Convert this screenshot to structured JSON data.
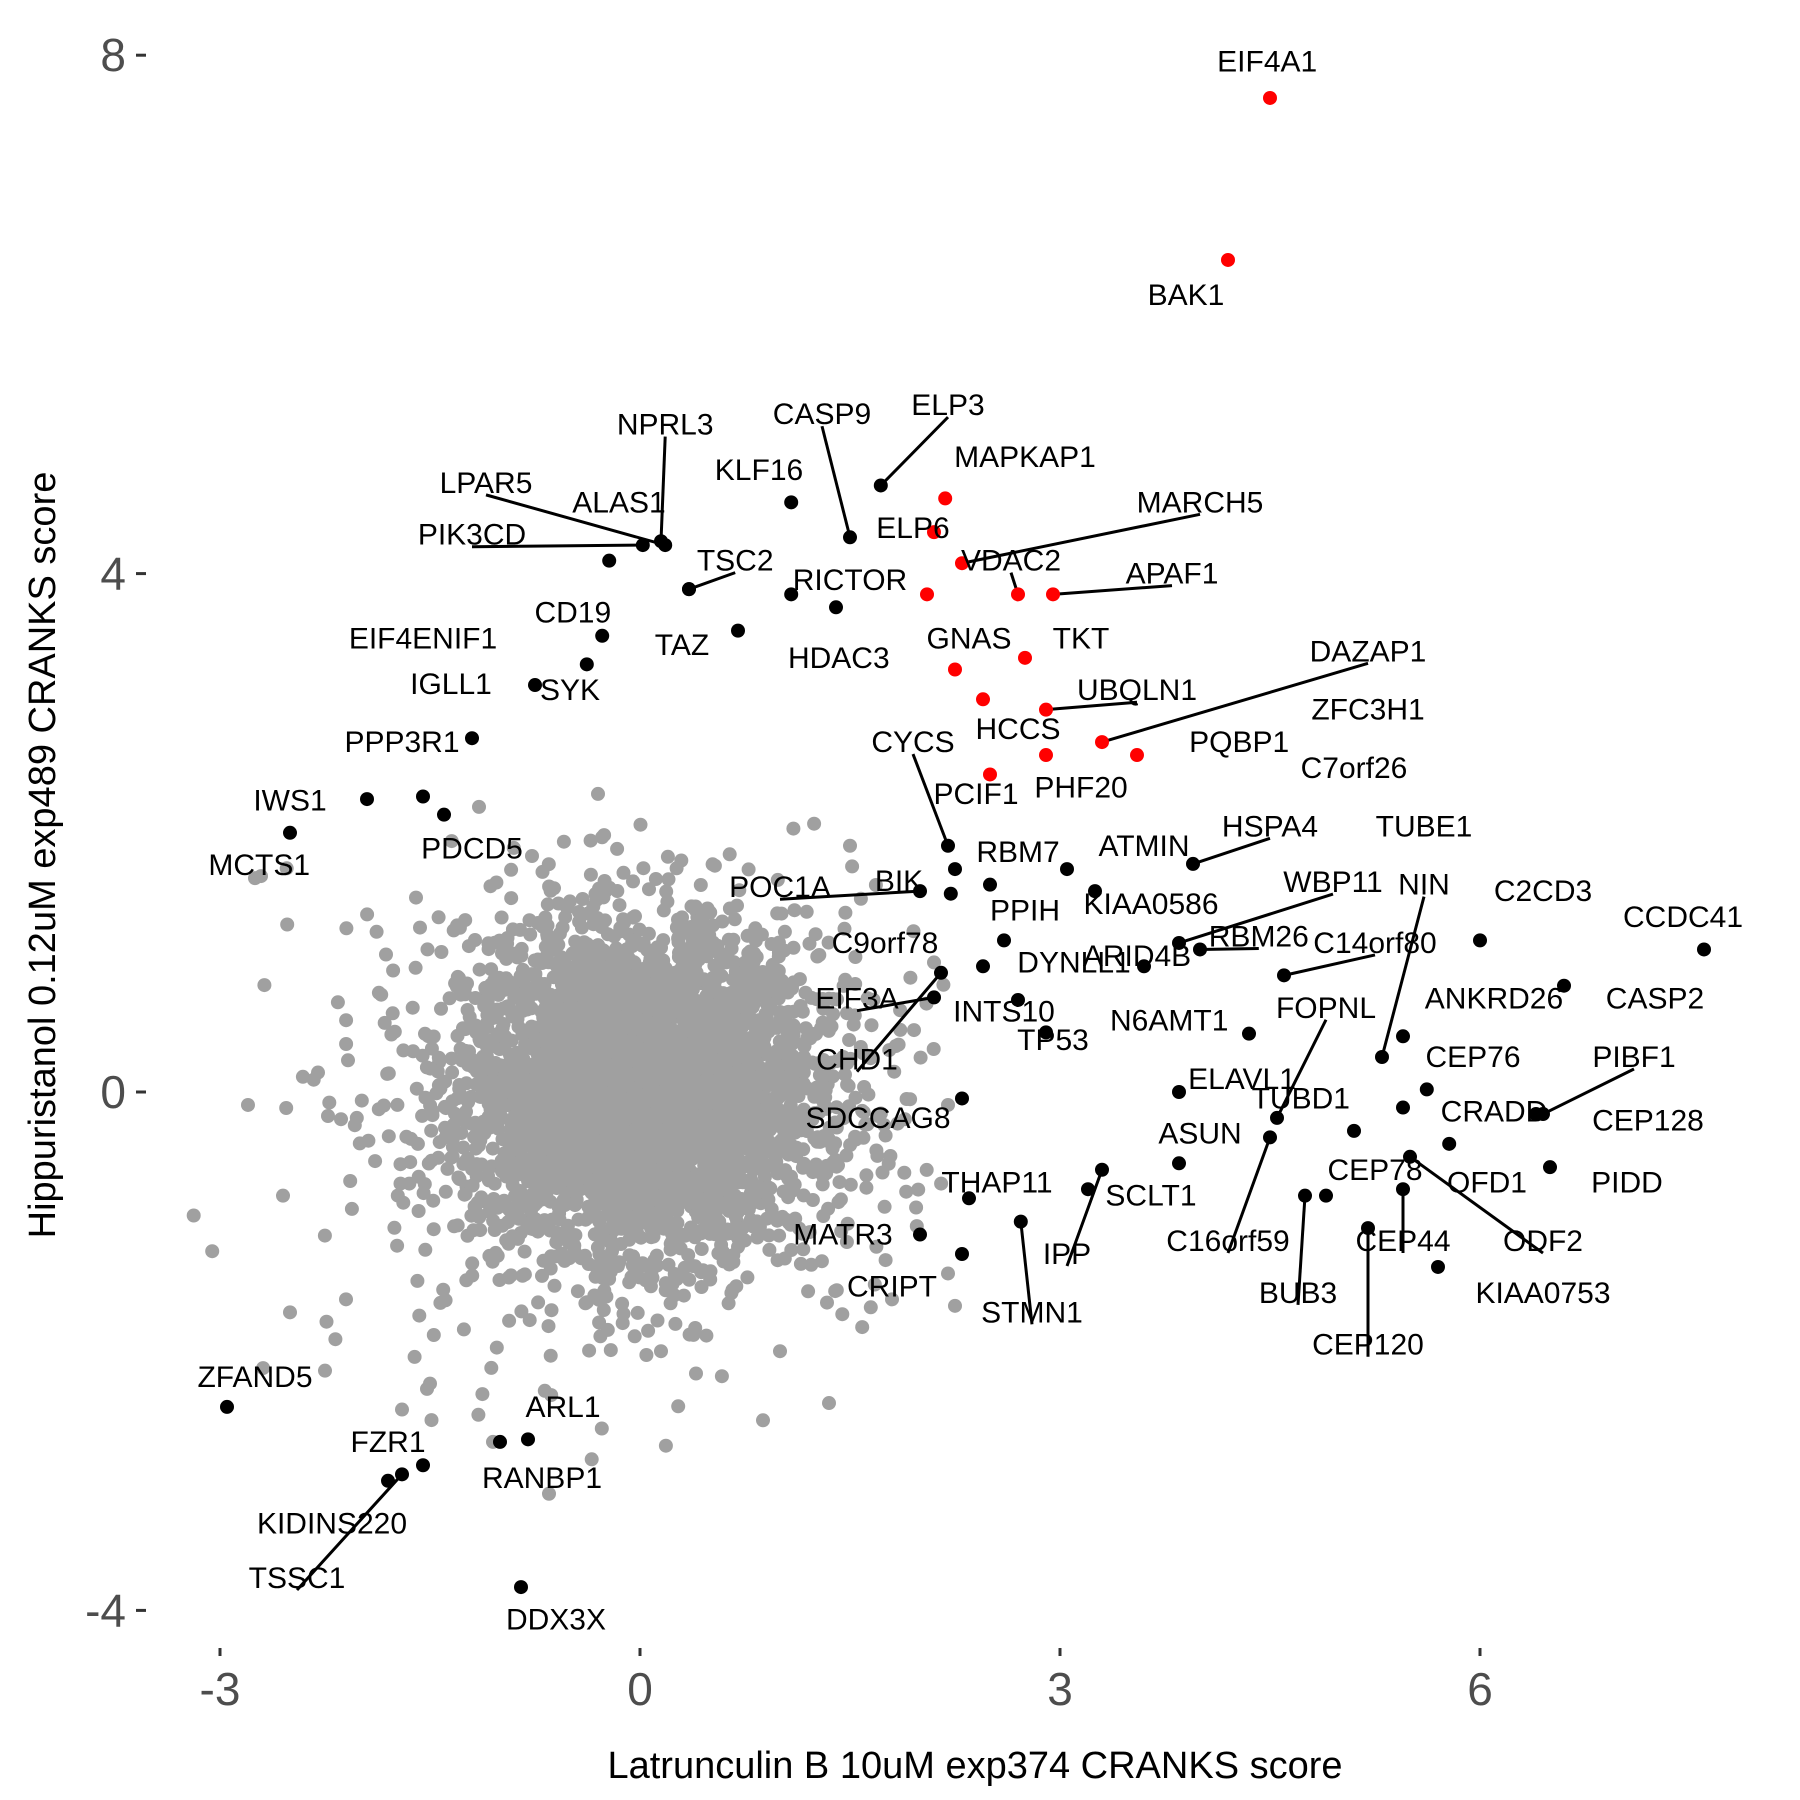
{
  "chart_data": {
    "type": "scatter",
    "xlabel": "Latrunculin B 10uM exp374 CRANKS score",
    "ylabel": "Hippuristanol 0.12uM exp489 CRANKS score",
    "xlim": [
      -3.5,
      7.8
    ],
    "ylim": [
      -4.35,
      8.4
    ],
    "x_ticks": [
      -3,
      0,
      3,
      6
    ],
    "y_ticks": [
      -4,
      0,
      4,
      8
    ],
    "grid": false,
    "background_cloud": {
      "color": "#a0a0a0",
      "description_count": 9000,
      "x_center": 0.0,
      "y_center": 0.0,
      "sample_outliers": [
        [
          -2.75,
          1.65
        ],
        [
          -2.8,
          -0.1
        ],
        [
          -2.3,
          0.15
        ],
        [
          -2.55,
          -0.8
        ],
        [
          -2.5,
          -1.7
        ],
        [
          -2.25,
          -2.15
        ],
        [
          -2.1,
          -1.6
        ],
        [
          -1.7,
          -2.45
        ],
        [
          -1.6,
          1.5
        ],
        [
          -1.5,
          -2.25
        ],
        [
          -1.15,
          2.2
        ],
        [
          -1.05,
          -2.7
        ],
        [
          -0.65,
          -3.1
        ],
        [
          -0.3,
          2.3
        ],
        [
          0.15,
          -2.0
        ],
        [
          1.0,
          -2.0
        ],
        [
          1.35,
          -2.4
        ],
        [
          2.2,
          -1.4
        ],
        [
          2.2,
          -0.1
        ],
        [
          2.1,
          1.0
        ],
        [
          1.8,
          -1.6
        ],
        [
          1.5,
          1.9
        ],
        [
          2.25,
          -1.65
        ]
      ]
    },
    "series": [
      {
        "color": "#000000",
        "points": [
          {
            "label": "MCTS1",
            "x": -2.5,
            "y": 2.0
          },
          {
            "label": "IWS1",
            "x": -1.95,
            "y": 2.26
          },
          {
            "label": "PDCD5",
            "x": -1.4,
            "y": 2.14
          },
          {
            "label": "",
            "x": -1.55,
            "y": 2.28
          },
          {
            "label": "PPP3R1",
            "x": -1.2,
            "y": 2.73
          },
          {
            "label": "IGLL1",
            "x": -0.75,
            "y": 3.14
          },
          {
            "label": "SYK",
            "x": -0.38,
            "y": 3.3
          },
          {
            "label": "EIF4ENIF1",
            "x": -0.27,
            "y": 3.52
          },
          {
            "label": "CD19",
            "x": -0.22,
            "y": 4.1
          },
          {
            "label": "PIK3CD",
            "x": 0.02,
            "y": 4.22
          },
          {
            "label": "LPAR5",
            "x": 0.18,
            "y": 4.22
          },
          {
            "label": "NPRL3",
            "x": 0.15,
            "y": 4.25
          },
          {
            "label": "ALAS1",
            "x": 0.35,
            "y": 3.88
          },
          {
            "label": "TSC2",
            "x": 0.35,
            "y": 3.88
          },
          {
            "label": "KLF16",
            "x": 1.08,
            "y": 4.55
          },
          {
            "label": "CASP9",
            "x": 1.5,
            "y": 4.28
          },
          {
            "label": "ELP3",
            "x": 1.72,
            "y": 4.68
          },
          {
            "label": "TAZ",
            "x": 0.7,
            "y": 3.56
          },
          {
            "label": "RICTOR",
            "x": 1.08,
            "y": 3.84
          },
          {
            "label": "HDAC3",
            "x": 1.4,
            "y": 3.74
          },
          {
            "label": "CYCS",
            "x": 2.2,
            "y": 1.9
          },
          {
            "label": "RBM7",
            "x": 2.25,
            "y": 1.72
          },
          {
            "label": "BIK",
            "x": 2.22,
            "y": 1.53
          },
          {
            "label": "POC1A",
            "x": 2.0,
            "y": 1.55
          },
          {
            "label": "PPIH",
            "x": 2.5,
            "y": 1.6
          },
          {
            "label": "ATMIN",
            "x": 3.05,
            "y": 1.72
          },
          {
            "label": "KIAA0586",
            "x": 3.25,
            "y": 1.55
          },
          {
            "label": "C9orf78",
            "x": 2.6,
            "y": 1.17
          },
          {
            "label": "DYNLL1",
            "x": 2.45,
            "y": 0.97
          },
          {
            "label": "ARID4B",
            "x": 3.6,
            "y": 0.97
          },
          {
            "label": "EIF3A",
            "x": 2.1,
            "y": 0.73
          },
          {
            "label": "INTS10",
            "x": 2.7,
            "y": 0.71
          },
          {
            "label": "CHD1",
            "x": 2.15,
            "y": 0.92
          },
          {
            "label": "TP53",
            "x": 2.9,
            "y": 0.46
          },
          {
            "label": "SDCCAG8",
            "x": 2.3,
            "y": -0.05
          },
          {
            "label": "THAP11",
            "x": 2.35,
            "y": -0.82
          },
          {
            "label": "MATR3",
            "x": 2.3,
            "y": -1.25
          },
          {
            "label": "CRIPT",
            "x": 2.0,
            "y": -1.1
          },
          {
            "label": "STMN1",
            "x": 2.72,
            "y": -1.0
          },
          {
            "label": "IPP",
            "x": 3.3,
            "y": -0.6
          },
          {
            "label": "SCLT1",
            "x": 3.2,
            "y": -0.75
          },
          {
            "label": "N6AMT1",
            "x": 3.85,
            "y": 0.0
          },
          {
            "label": "ASUN",
            "x": 3.85,
            "y": -0.55
          },
          {
            "label": "ELAVL1",
            "x": 4.35,
            "y": 0.45
          },
          {
            "label": "HSPA4",
            "x": 3.95,
            "y": 1.76
          },
          {
            "label": "WBP11",
            "x": 3.85,
            "y": 1.15
          },
          {
            "label": "RBM26",
            "x": 4.0,
            "y": 1.1
          },
          {
            "label": "C14orf80",
            "x": 4.6,
            "y": 0.9
          },
          {
            "label": "FOPNL",
            "x": 4.55,
            "y": -0.2
          },
          {
            "label": "C16orf59",
            "x": 4.5,
            "y": -0.35
          },
          {
            "label": "TUBD1",
            "x": 5.1,
            "y": -0.3
          },
          {
            "label": "CEP78",
            "x": 4.9,
            "y": -0.8
          },
          {
            "label": "BUB3",
            "x": 4.75,
            "y": -0.8
          },
          {
            "label": "CEP120",
            "x": 5.2,
            "y": -1.05
          },
          {
            "label": "CEP44",
            "x": 5.45,
            "y": -0.75
          },
          {
            "label": "ODF2",
            "x": 5.5,
            "y": -0.5
          },
          {
            "label": "KIAA0753",
            "x": 5.7,
            "y": -1.35
          },
          {
            "label": "OFD1",
            "x": 5.78,
            "y": -0.4
          },
          {
            "label": "CRADD",
            "x": 5.45,
            "y": -0.12
          },
          {
            "label": "CEP76",
            "x": 5.62,
            "y": 0.02
          },
          {
            "label": "ANKRD26",
            "x": 5.45,
            "y": 0.43
          },
          {
            "label": "NIN",
            "x": 5.3,
            "y": 0.27
          },
          {
            "label": "C2CD3",
            "x": 6.0,
            "y": 1.17
          },
          {
            "label": "CCDC41",
            "x": 7.6,
            "y": 1.1
          },
          {
            "label": "CASP2",
            "x": 6.6,
            "y": 0.82
          },
          {
            "label": "PIBF1",
            "x": 6.45,
            "y": -0.17
          },
          {
            "label": "CEP128",
            "x": 6.4,
            "y": -0.17
          },
          {
            "label": "PIDD",
            "x": 6.5,
            "y": -0.58
          },
          {
            "label": "ZFAND5",
            "x": -2.95,
            "y": -2.43
          },
          {
            "label": "FZR1",
            "x": -1.55,
            "y": -2.88
          },
          {
            "label": "KIDINS220",
            "x": -1.8,
            "y": -3.0
          },
          {
            "label": "TSSC1",
            "x": -1.7,
            "y": -2.95
          },
          {
            "label": "ARL1",
            "x": -0.8,
            "y": -2.68
          },
          {
            "label": "RANBP1",
            "x": -1.0,
            "y": -2.7
          },
          {
            "label": "DDX3X",
            "x": -0.85,
            "y": -3.82
          }
        ]
      },
      {
        "color": "#ff0000",
        "points": [
          {
            "label": "EIF4A1",
            "x": 4.5,
            "y": 7.67
          },
          {
            "label": "BAK1",
            "x": 4.2,
            "y": 6.42
          },
          {
            "label": "MAPKAP1",
            "x": 2.18,
            "y": 4.58
          },
          {
            "label": "ELP6",
            "x": 2.1,
            "y": 4.32
          },
          {
            "label": "MARCH5",
            "x": 2.3,
            "y": 4.08
          },
          {
            "label": "VDAC2",
            "x": 2.7,
            "y": 3.84
          },
          {
            "label": "APAF1",
            "x": 2.95,
            "y": 3.84
          },
          {
            "label": "RICTOR-red",
            "x": 2.05,
            "y": 3.84
          },
          {
            "label": "GNAS",
            "x": 2.25,
            "y": 3.26
          },
          {
            "label": "TKT",
            "x": 2.75,
            "y": 3.35
          },
          {
            "label": "UBQLN1",
            "x": 2.9,
            "y": 2.95
          },
          {
            "label": "HCCS",
            "x": 2.45,
            "y": 3.03
          },
          {
            "label": "DAZAP1",
            "x": 3.3,
            "y": 2.7
          },
          {
            "label": "PQBP1",
            "x": 3.55,
            "y": 2.6
          },
          {
            "label": "PHF20",
            "x": 2.9,
            "y": 2.6
          },
          {
            "label": "PCIF1",
            "x": 2.5,
            "y": 2.45
          }
        ]
      }
    ],
    "labels": [
      {
        "text": "EIF4A1",
        "x": 4.48,
        "y": 7.95
      },
      {
        "text": "BAK1",
        "x": 3.9,
        "y": 6.15
      },
      {
        "text": "ELP3",
        "x": 2.2,
        "y": 5.3
      },
      {
        "text": "CASP9",
        "x": 1.3,
        "y": 5.23
      },
      {
        "text": "NPRL3",
        "x": 0.18,
        "y": 5.15
      },
      {
        "text": "MAPKAP1",
        "x": 2.75,
        "y": 4.9
      },
      {
        "text": "KLF16",
        "x": 0.85,
        "y": 4.8
      },
      {
        "text": "LPAR5",
        "x": -1.1,
        "y": 4.7
      },
      {
        "text": "ALAS1",
        "x": -0.15,
        "y": 4.55
      },
      {
        "text": "MARCH5",
        "x": 4.0,
        "y": 4.55
      },
      {
        "text": "PIK3CD",
        "x": -1.2,
        "y": 4.3
      },
      {
        "text": "ELP6",
        "x": 1.95,
        "y": 4.35
      },
      {
        "text": "TSC2",
        "x": 0.68,
        "y": 4.1
      },
      {
        "text": "VDAC2",
        "x": 2.65,
        "y": 4.1
      },
      {
        "text": "APAF1",
        "x": 3.8,
        "y": 4.0
      },
      {
        "text": "RICTOR",
        "x": 1.5,
        "y": 3.95
      },
      {
        "text": "CD19",
        "x": -0.48,
        "y": 3.7
      },
      {
        "text": "EIF4ENIF1",
        "x": -1.55,
        "y": 3.5
      },
      {
        "text": "GNAS",
        "x": 2.35,
        "y": 3.5
      },
      {
        "text": "TKT",
        "x": 3.15,
        "y": 3.5
      },
      {
        "text": "TAZ",
        "x": 0.3,
        "y": 3.45
      },
      {
        "text": "DAZAP1",
        "x": 5.2,
        "y": 3.4
      },
      {
        "text": "HDAC3",
        "x": 1.42,
        "y": 3.35
      },
      {
        "text": "IGLL1",
        "x": -1.35,
        "y": 3.15
      },
      {
        "text": "SYK",
        "x": -0.5,
        "y": 3.1
      },
      {
        "text": "UBQLN1",
        "x": 3.55,
        "y": 3.1
      },
      {
        "text": "ZFC3H1",
        "x": 5.2,
        "y": 2.95
      },
      {
        "text": "HCCS",
        "x": 2.7,
        "y": 2.8
      },
      {
        "text": "PPP3R1",
        "x": -1.7,
        "y": 2.7
      },
      {
        "text": "CYCS",
        "x": 1.95,
        "y": 2.7
      },
      {
        "text": "PQBP1",
        "x": 4.28,
        "y": 2.7
      },
      {
        "text": "C7orf26",
        "x": 5.1,
        "y": 2.5
      },
      {
        "text": "PHF20",
        "x": 3.15,
        "y": 2.35
      },
      {
        "text": "IWS1",
        "x": -2.5,
        "y": 2.25
      },
      {
        "text": "PCIF1",
        "x": 2.4,
        "y": 2.3
      },
      {
        "text": "HSPA4",
        "x": 4.5,
        "y": 2.05
      },
      {
        "text": "TUBE1",
        "x": 5.6,
        "y": 2.05
      },
      {
        "text": "PDCD5",
        "x": -1.2,
        "y": 1.88
      },
      {
        "text": "RBM7",
        "x": 2.7,
        "y": 1.85
      },
      {
        "text": "ATMIN",
        "x": 3.6,
        "y": 1.9
      },
      {
        "text": "MCTS1",
        "x": -2.72,
        "y": 1.75
      },
      {
        "text": "POC1A",
        "x": 1.0,
        "y": 1.58
      },
      {
        "text": "BIK",
        "x": 1.85,
        "y": 1.63
      },
      {
        "text": "WBP11",
        "x": 4.95,
        "y": 1.62
      },
      {
        "text": "NIN",
        "x": 5.6,
        "y": 1.6
      },
      {
        "text": "C2CD3",
        "x": 6.45,
        "y": 1.55
      },
      {
        "text": "KIAA0586",
        "x": 3.65,
        "y": 1.45
      },
      {
        "text": "CCDC41",
        "x": 7.45,
        "y": 1.35
      },
      {
        "text": "PPIH",
        "x": 2.75,
        "y": 1.4
      },
      {
        "text": "RBM26",
        "x": 4.42,
        "y": 1.2
      },
      {
        "text": "C14orf80",
        "x": 5.25,
        "y": 1.15
      },
      {
        "text": "C9orf78",
        "x": 1.75,
        "y": 1.15
      },
      {
        "text": "DYNLL1",
        "x": 3.1,
        "y": 1.0
      },
      {
        "text": "ARID4B",
        "x": 3.55,
        "y": 1.05
      },
      {
        "text": "EIF3A",
        "x": 1.55,
        "y": 0.72
      },
      {
        "text": "ANKRD26",
        "x": 6.1,
        "y": 0.72
      },
      {
        "text": "CASP2",
        "x": 7.25,
        "y": 0.72
      },
      {
        "text": "INTS10",
        "x": 2.6,
        "y": 0.62
      },
      {
        "text": "FOPNL",
        "x": 4.9,
        "y": 0.65
      },
      {
        "text": "N6AMT1",
        "x": 3.78,
        "y": 0.55
      },
      {
        "text": "TP53",
        "x": 2.95,
        "y": 0.4
      },
      {
        "text": "CHD1",
        "x": 1.55,
        "y": 0.25
      },
      {
        "text": "CEP76",
        "x": 5.95,
        "y": 0.27
      },
      {
        "text": "PIBF1",
        "x": 7.1,
        "y": 0.27
      },
      {
        "text": "ELAVL1",
        "x": 4.3,
        "y": 0.1
      },
      {
        "text": "TUBD1",
        "x": 4.72,
        "y": -0.05
      },
      {
        "text": "SDCCAG8",
        "x": 1.7,
        "y": -0.2
      },
      {
        "text": "CRADD",
        "x": 6.1,
        "y": -0.15
      },
      {
        "text": "CEP128",
        "x": 7.2,
        "y": -0.22
      },
      {
        "text": "ASUN",
        "x": 4.0,
        "y": -0.32
      },
      {
        "text": "CEP78",
        "x": 5.25,
        "y": -0.6
      },
      {
        "text": "THAP11",
        "x": 2.55,
        "y": -0.7
      },
      {
        "text": "OFD1",
        "x": 6.05,
        "y": -0.7
      },
      {
        "text": "PIDD",
        "x": 7.05,
        "y": -0.7
      },
      {
        "text": "SCLT1",
        "x": 3.65,
        "y": -0.8
      },
      {
        "text": "C16orf59",
        "x": 4.2,
        "y": -1.15
      },
      {
        "text": "CEP44",
        "x": 5.45,
        "y": -1.15
      },
      {
        "text": "ODF2",
        "x": 6.45,
        "y": -1.15
      },
      {
        "text": "MATR3",
        "x": 1.45,
        "y": -1.1
      },
      {
        "text": "IPP",
        "x": 3.05,
        "y": -1.25
      },
      {
        "text": "CRIPT",
        "x": 1.8,
        "y": -1.5
      },
      {
        "text": "BUB3",
        "x": 4.7,
        "y": -1.55
      },
      {
        "text": "KIAA0753",
        "x": 6.45,
        "y": -1.55
      },
      {
        "text": "STMN1",
        "x": 2.8,
        "y": -1.7
      },
      {
        "text": "CEP120",
        "x": 5.2,
        "y": -1.95
      },
      {
        "text": "ZFAND5",
        "x": -2.75,
        "y": -2.2
      },
      {
        "text": "ARL1",
        "x": -0.55,
        "y": -2.43
      },
      {
        "text": "FZR1",
        "x": -1.8,
        "y": -2.7
      },
      {
        "text": "RANBP1",
        "x": -0.7,
        "y": -2.98
      },
      {
        "text": "KIDINS220",
        "x": -2.2,
        "y": -3.33
      },
      {
        "text": "TSSC1",
        "x": -2.45,
        "y": -3.75
      },
      {
        "text": "DDX3X",
        "x": -0.6,
        "y": -4.07
      }
    ]
  }
}
